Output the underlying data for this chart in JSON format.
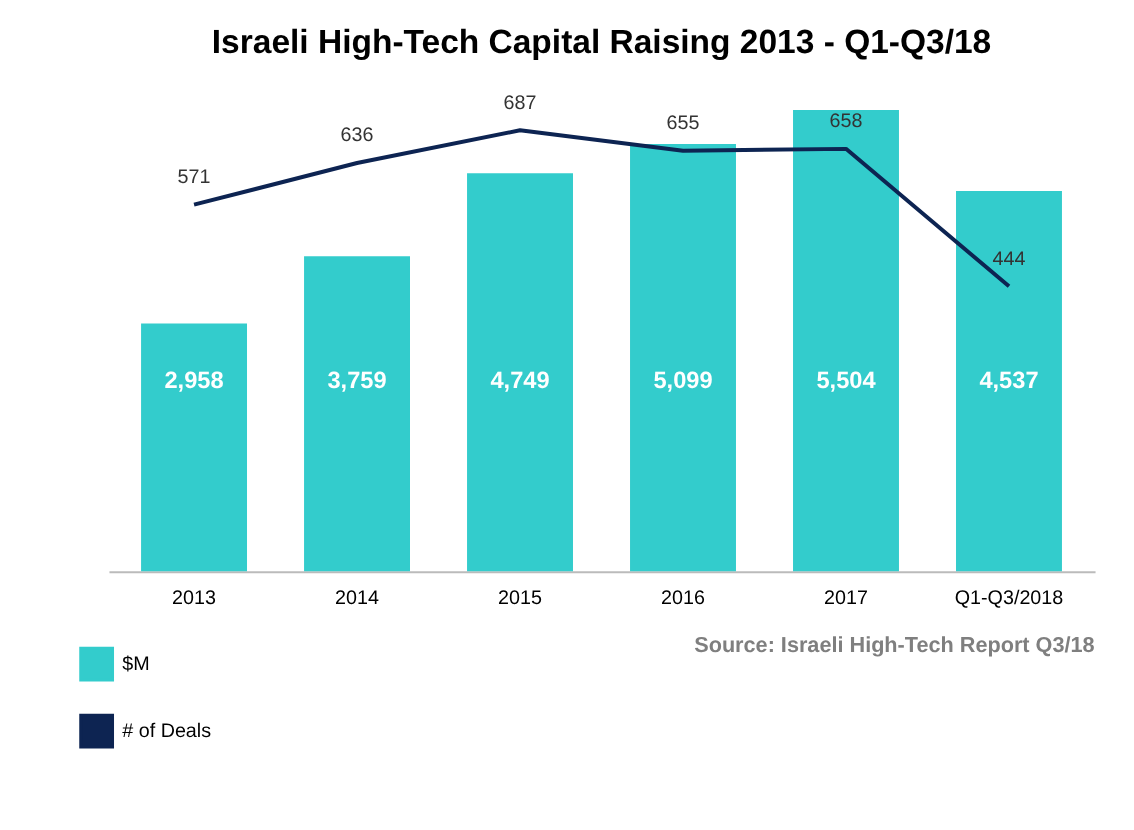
{
  "chart_data": {
    "type": "bar",
    "title": "Israeli High-Tech Capital Raising 2013 - Q1-Q3/18",
    "categories": [
      "2013",
      "2014",
      "2015",
      "2016",
      "2017",
      "Q1-Q3/2018"
    ],
    "series": [
      {
        "name": "$M",
        "color": "#33cccc",
        "values": [
          2958,
          3759,
          4749,
          5099,
          5504,
          4537
        ],
        "value_labels": [
          "2,958",
          "3,759",
          "4,749",
          "5,099",
          "5,504",
          "4,537"
        ]
      },
      {
        "name": "# of Deals",
        "type": "line",
        "axis": "y2",
        "color": "#0d2452",
        "values": [
          571,
          636,
          687,
          655,
          658,
          444
        ]
      }
    ],
    "data_labels": true,
    "legend": "bottom left",
    "tick_labels": "x",
    "grid": false,
    "annotations": [
      "Source: Israeli High-Tech Report Q3/18"
    ]
  }
}
